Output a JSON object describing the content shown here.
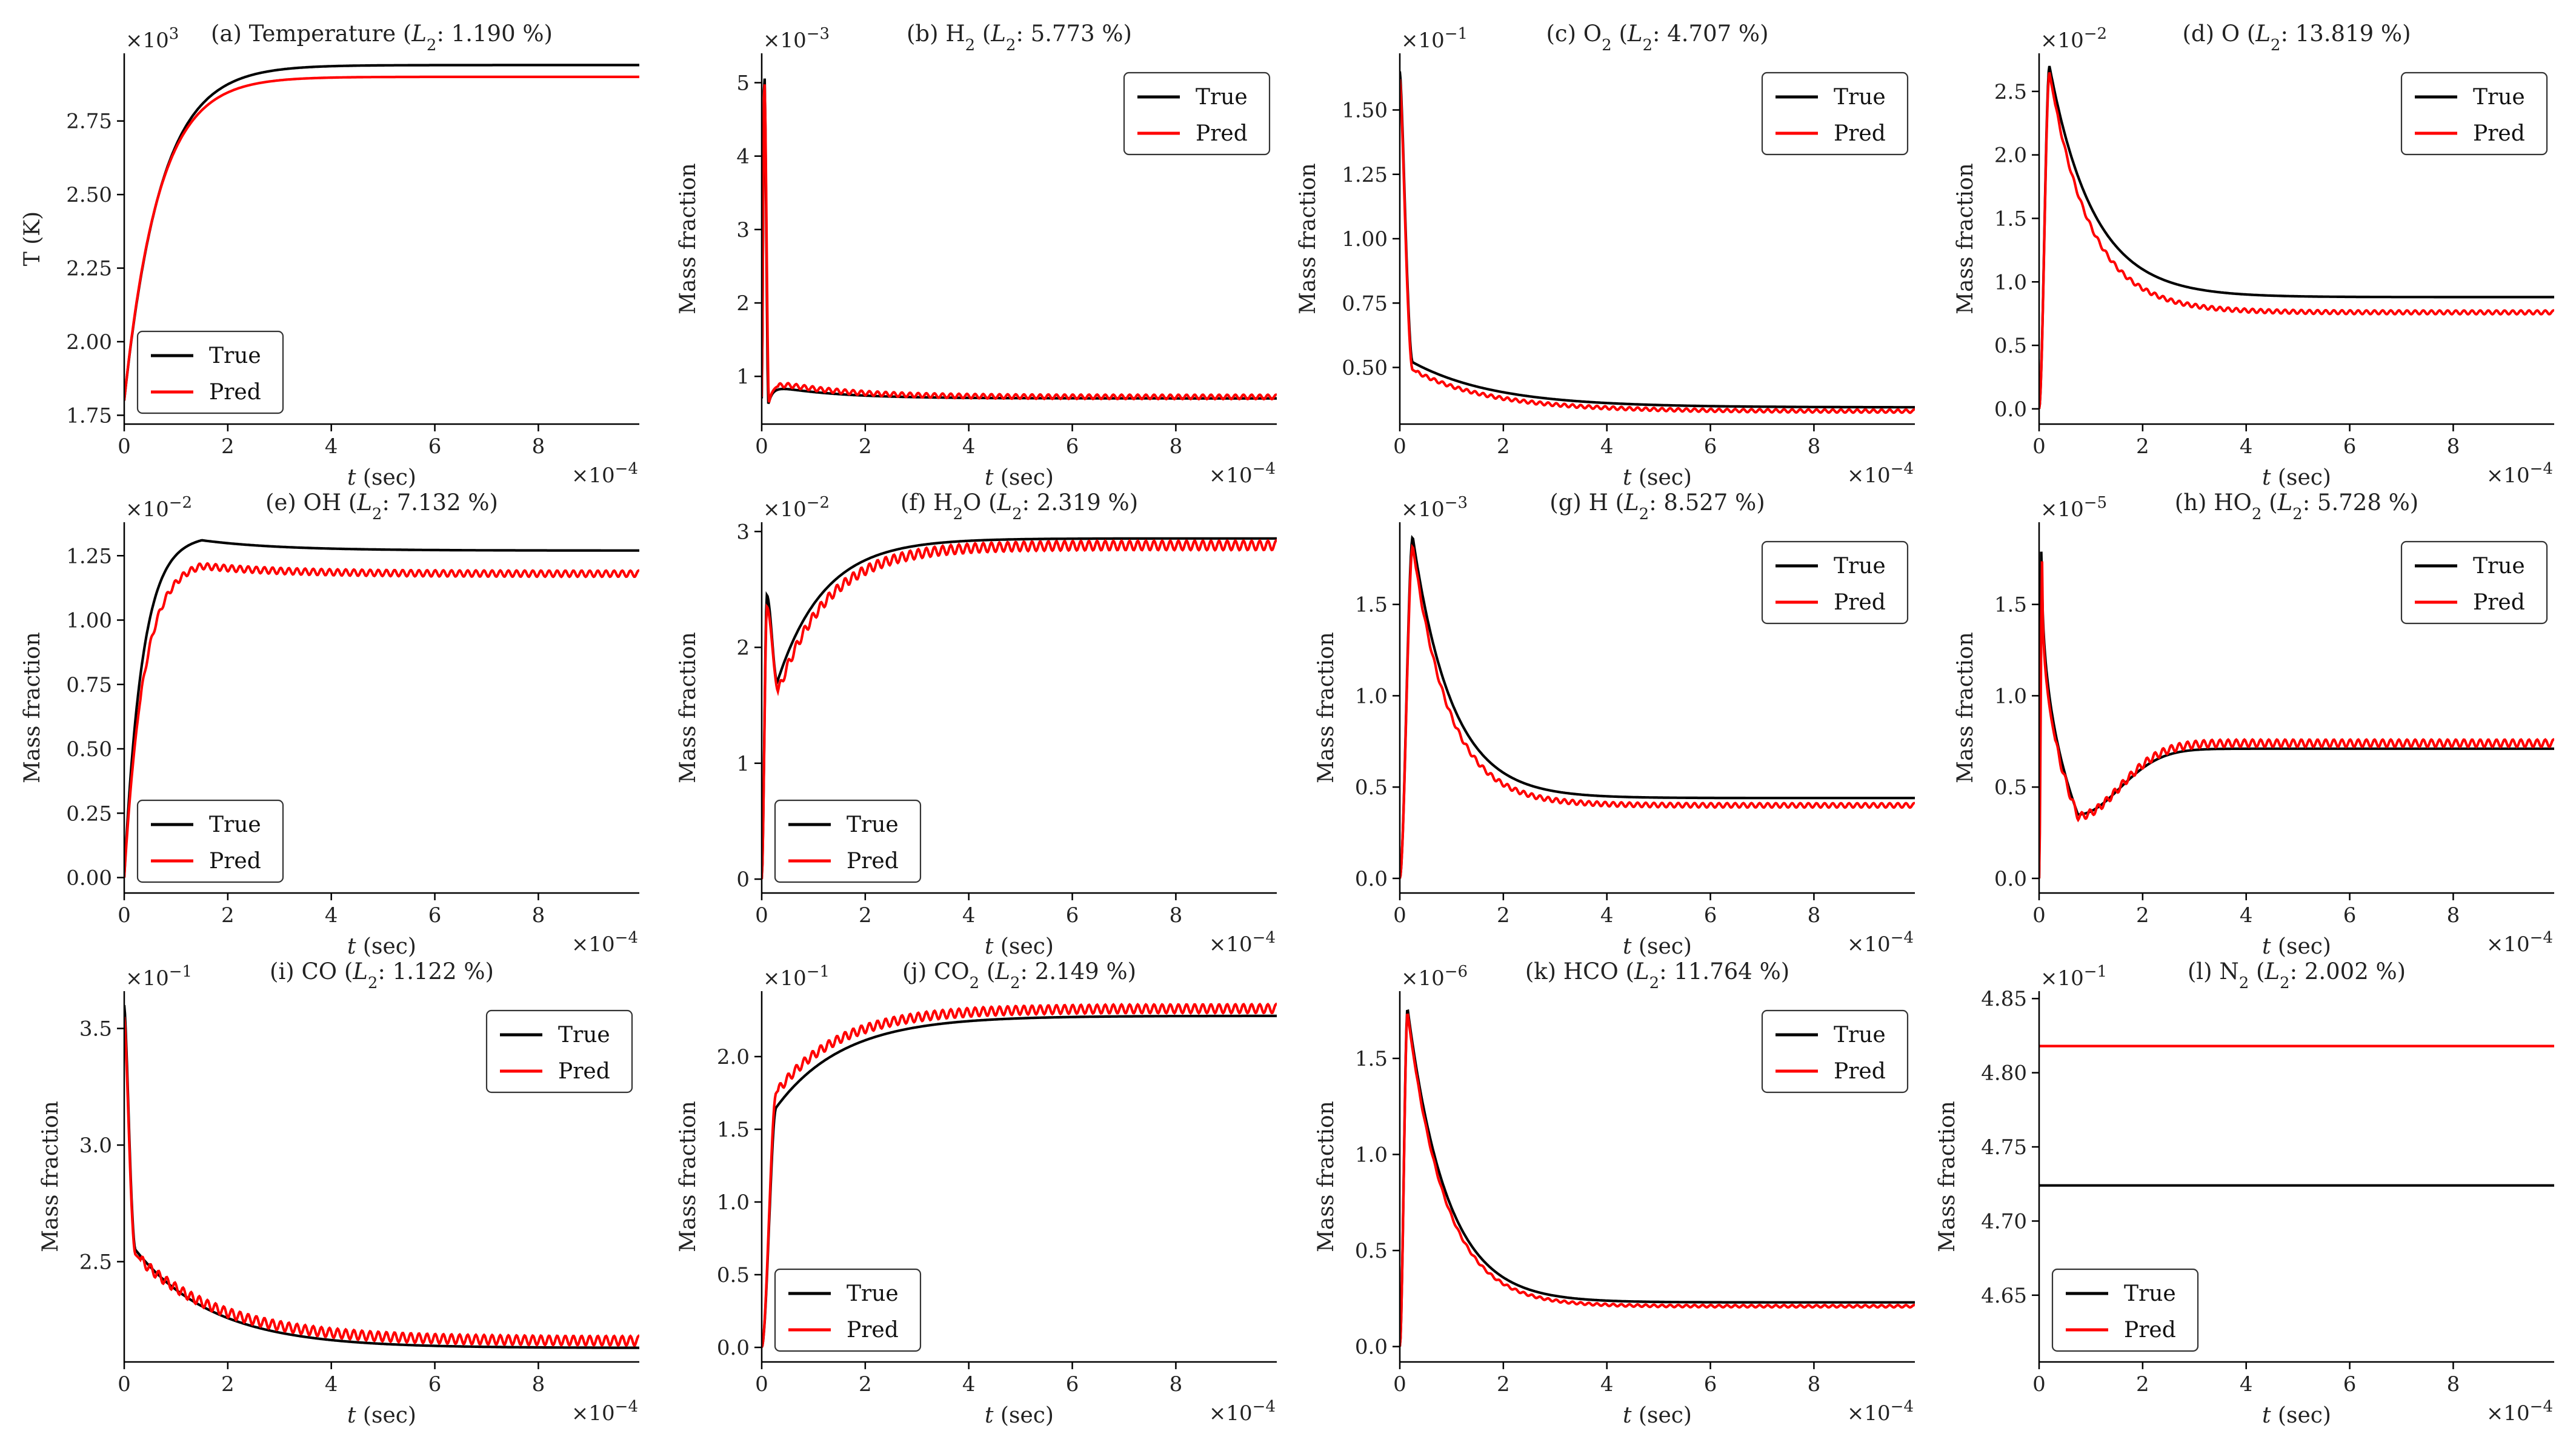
{
  "colors": {
    "true": "#000000",
    "pred": "#ff0000"
  },
  "legend_labels": {
    "true": "True",
    "pred": "Pred"
  },
  "x_label": {
    "italic": "t",
    "rest": "(sec)"
  },
  "chart_data": [
    {
      "id": "a",
      "type": "line",
      "title": {
        "prefix": "(a) Temperature (",
        "l2_italic": "L",
        "l2_sub": "2",
        "suffix": ": 1.190 %)"
      },
      "ylabel": "T (K)",
      "y_multiplier": "×10",
      "y_exponent": "3",
      "x_multiplier": "×10",
      "x_exponent": "−4",
      "xlim": [
        0,
        9.95
      ],
      "xticks": [
        "0",
        "2",
        "4",
        "6",
        "8"
      ],
      "ylim": [
        1.72,
        2.98
      ],
      "yticks": [
        "1.75",
        "2.00",
        "2.25",
        "2.50",
        "2.75"
      ],
      "legend_position": "lower-left",
      "series": [
        {
          "name": "True",
          "kind": "grow",
          "y0": 1.8,
          "y1": 2.94,
          "tau": 0.7
        },
        {
          "name": "Pred",
          "kind": "grow",
          "y0": 1.8,
          "y1": 2.9,
          "tau": 0.66
        }
      ]
    },
    {
      "id": "b",
      "type": "line",
      "title": {
        "prefix": "(b) H",
        "sub": "2",
        "mid": " (",
        "l2_italic": "L",
        "l2_sub": "2",
        "suffix": ": 5.773 %)"
      },
      "ylabel": "Mass fraction",
      "y_multiplier": "×10",
      "y_exponent": "−3",
      "x_multiplier": "×10",
      "x_exponent": "−4",
      "xlim": [
        0,
        9.95
      ],
      "xticks": [
        "0",
        "2",
        "4",
        "6",
        "8"
      ],
      "ylim": [
        0.35,
        5.4
      ],
      "yticks": [
        "1",
        "2",
        "3",
        "4",
        "5"
      ],
      "legend_position": "upper-right",
      "series": [
        {
          "name": "True",
          "kind": "spike",
          "base": 0.7,
          "peak": 5.15,
          "tpeak": 0.05,
          "tdrop": 0.13,
          "bump": 0.18,
          "tau": 1.2
        },
        {
          "name": "Pred",
          "kind": "spike",
          "base": 0.72,
          "peak": 5.05,
          "tpeak": 0.05,
          "tdrop": 0.14,
          "bump": 0.22,
          "tau": 1.3,
          "wiggle": 0.03
        }
      ]
    },
    {
      "id": "c",
      "type": "line",
      "title": {
        "prefix": "(c) O",
        "sub": "2",
        "mid": " (",
        "l2_italic": "L",
        "l2_sub": "2",
        "suffix": ": 4.707 %)"
      },
      "ylabel": "Mass fraction",
      "y_multiplier": "×10",
      "y_exponent": "−1",
      "x_multiplier": "×10",
      "x_exponent": "−4",
      "xlim": [
        0,
        9.95
      ],
      "xticks": [
        "0",
        "2",
        "4",
        "6",
        "8"
      ],
      "ylim": [
        0.28,
        1.72
      ],
      "yticks": [
        "0.50",
        "0.75",
        "1.00",
        "1.25",
        "1.50"
      ],
      "legend_position": "upper-right",
      "series": [
        {
          "name": "True",
          "kind": "decay",
          "start": 1.65,
          "mid": 0.52,
          "tmid": 0.25,
          "end": 0.345,
          "tau": 1.6
        },
        {
          "name": "Pred",
          "kind": "decay",
          "start": 1.62,
          "mid": 0.49,
          "tmid": 0.25,
          "end": 0.33,
          "tau": 1.5,
          "wiggle": 0.006
        }
      ]
    },
    {
      "id": "d",
      "type": "line",
      "title": {
        "prefix": "(d) O (",
        "l2_italic": "L",
        "l2_sub": "2",
        "suffix": ": 13.819 %)"
      },
      "ylabel": "Mass fraction",
      "y_multiplier": "×10",
      "y_exponent": "−2",
      "x_multiplier": "×10",
      "x_exponent": "−4",
      "xlim": [
        0,
        9.95
      ],
      "xticks": [
        "0",
        "2",
        "4",
        "6",
        "8"
      ],
      "ylim": [
        -0.12,
        2.8
      ],
      "yticks": [
        "0.0",
        "0.5",
        "1.0",
        "1.5",
        "2.0",
        "2.5"
      ],
      "legend_position": "upper-right",
      "series": [
        {
          "name": "True",
          "kind": "peak",
          "peak": 2.7,
          "tpeak": 0.2,
          "end": 0.88,
          "tau": 0.85
        },
        {
          "name": "Pred",
          "kind": "peak",
          "peak": 2.65,
          "tpeak": 0.2,
          "end": 0.76,
          "tau": 0.78,
          "wiggle": 0.015
        }
      ]
    },
    {
      "id": "e",
      "type": "line",
      "title": {
        "prefix": "(e) OH (",
        "l2_italic": "L",
        "l2_sub": "2",
        "suffix": ": 7.132 %)"
      },
      "ylabel": "Mass fraction",
      "y_multiplier": "×10",
      "y_exponent": "−2",
      "x_multiplier": "×10",
      "x_exponent": "−4",
      "xlim": [
        0,
        9.95
      ],
      "xticks": [
        "0",
        "2",
        "4",
        "6",
        "8"
      ],
      "ylim": [
        -0.06,
        1.38
      ],
      "yticks": [
        "0.00",
        "0.25",
        "0.50",
        "0.75",
        "1.00",
        "1.25"
      ],
      "legend_position": "lower-left",
      "series": [
        {
          "name": "True",
          "kind": "overshoot",
          "peak": 1.31,
          "tpeak": 1.5,
          "end": 1.27,
          "rise": 0.35
        },
        {
          "name": "Pred",
          "kind": "overshoot",
          "peak": 1.21,
          "tpeak": 1.5,
          "end": 1.18,
          "rise": 0.38,
          "wiggle": 0.012
        }
      ]
    },
    {
      "id": "f",
      "type": "line",
      "title": {
        "prefix": "(f) H",
        "sub": "2",
        "mid": "O (",
        "l2_italic": "L",
        "l2_sub": "2",
        "suffix": ": 2.319 %)"
      },
      "ylabel": "Mass fraction",
      "y_multiplier": "×10",
      "y_exponent": "−2",
      "x_multiplier": "×10",
      "x_exponent": "−4",
      "xlim": [
        0,
        9.95
      ],
      "xticks": [
        "0",
        "2",
        "4",
        "6",
        "8"
      ],
      "ylim": [
        -0.12,
        3.08
      ],
      "yticks": [
        "0",
        "1",
        "2",
        "3"
      ],
      "legend_position": "lower-left",
      "series": [
        {
          "name": "True",
          "kind": "dipgrow",
          "spike": 2.45,
          "tspike": 0.1,
          "dip": 1.7,
          "tdip": 0.3,
          "end": 2.94,
          "tau": 0.9
        },
        {
          "name": "Pred",
          "kind": "dipgrow",
          "spike": 2.35,
          "tspike": 0.1,
          "dip": 1.62,
          "tdip": 0.32,
          "end": 2.88,
          "tau": 0.95,
          "wiggle": 0.04
        }
      ]
    },
    {
      "id": "g",
      "type": "line",
      "title": {
        "prefix": "(g) H (",
        "l2_italic": "L",
        "l2_sub": "2",
        "suffix": ": 8.527 %)"
      },
      "ylabel": "Mass fraction",
      "y_multiplier": "×10",
      "y_exponent": "−3",
      "x_multiplier": "×10",
      "x_exponent": "−4",
      "xlim": [
        0,
        9.95
      ],
      "xticks": [
        "0",
        "2",
        "4",
        "6",
        "8"
      ],
      "ylim": [
        -0.08,
        1.95
      ],
      "yticks": [
        "0.0",
        "0.5",
        "1.0",
        "1.5"
      ],
      "legend_position": "upper-right",
      "series": [
        {
          "name": "True",
          "kind": "peak",
          "peak": 1.87,
          "tpeak": 0.25,
          "end": 0.44,
          "tau": 0.75
        },
        {
          "name": "Pred",
          "kind": "peak",
          "peak": 1.82,
          "tpeak": 0.25,
          "end": 0.4,
          "tau": 0.7,
          "wiggle": 0.012
        }
      ]
    },
    {
      "id": "h",
      "type": "line",
      "title": {
        "prefix": "(h) HO",
        "sub": "2",
        "mid": " (",
        "l2_italic": "L",
        "l2_sub": "2",
        "suffix": ": 5.728 %)"
      },
      "ylabel": "Mass fraction",
      "y_multiplier": "×10",
      "y_exponent": "−5",
      "x_multiplier": "×10",
      "x_exponent": "−4",
      "xlim": [
        0,
        9.95
      ],
      "xticks": [
        "0",
        "2",
        "4",
        "6",
        "8"
      ],
      "ylim": [
        -0.08,
        1.95
      ],
      "yticks": [
        "0.0",
        "0.5",
        "1.0",
        "1.5"
      ],
      "legend_position": "upper-right",
      "series": [
        {
          "name": "True",
          "kind": "spikedip",
          "peak": 1.9,
          "tpeak": 0.05,
          "trough": 0.35,
          "ttrough": 0.75,
          "end": 0.71
        },
        {
          "name": "Pred",
          "kind": "spikedip",
          "peak": 1.75,
          "tpeak": 0.06,
          "trough": 0.34,
          "ttrough": 0.75,
          "end": 0.74,
          "wiggle": 0.02
        }
      ]
    },
    {
      "id": "i",
      "type": "line",
      "title": {
        "prefix": "(i) CO (",
        "l2_italic": "L",
        "l2_sub": "2",
        "suffix": ": 1.122 %)"
      },
      "ylabel": "Mass fraction",
      "y_multiplier": "×10",
      "y_exponent": "−1",
      "x_multiplier": "×10",
      "x_exponent": "−4",
      "xlim": [
        0,
        9.95
      ],
      "xticks": [
        "0",
        "2",
        "4",
        "6",
        "8"
      ],
      "ylim": [
        2.07,
        3.66
      ],
      "yticks": [
        "2.5",
        "3.0",
        "3.5"
      ],
      "legend_position": "upper-right",
      "series": [
        {
          "name": "True",
          "kind": "decay",
          "start": 3.6,
          "mid": 2.55,
          "tmid": 0.22,
          "end": 2.13,
          "tau": 1.5
        },
        {
          "name": "Pred",
          "kind": "decay",
          "start": 3.55,
          "mid": 2.53,
          "tmid": 0.22,
          "end": 2.16,
          "tau": 1.6,
          "wiggle": 0.02
        }
      ]
    },
    {
      "id": "j",
      "type": "line",
      "title": {
        "prefix": "(j) CO",
        "sub": "2",
        "mid": " (",
        "l2_italic": "L",
        "l2_sub": "2",
        "suffix": ": 2.149 %)"
      },
      "ylabel": "Mass fraction",
      "y_multiplier": "×10",
      "y_exponent": "−1",
      "x_multiplier": "×10",
      "x_exponent": "−4",
      "xlim": [
        0,
        9.95
      ],
      "xticks": [
        "0",
        "2",
        "4",
        "6",
        "8"
      ],
      "ylim": [
        -0.1,
        2.45
      ],
      "yticks": [
        "0.0",
        "0.5",
        "1.0",
        "1.5",
        "2.0"
      ],
      "legend_position": "lower-left",
      "series": [
        {
          "name": "True",
          "kind": "jumpgrow",
          "jump": 1.65,
          "tjump": 0.28,
          "end": 2.28,
          "tau": 1.3
        },
        {
          "name": "Pred",
          "kind": "jumpgrow",
          "jump": 1.75,
          "tjump": 0.28,
          "end": 2.33,
          "tau": 1.2,
          "wiggle": 0.03
        }
      ]
    },
    {
      "id": "k",
      "type": "line",
      "title": {
        "prefix": "(k) HCO (",
        "l2_italic": "L",
        "l2_sub": "2",
        "suffix": ": 11.764 %)"
      },
      "ylabel": "Mass fraction",
      "y_multiplier": "×10",
      "y_exponent": "−6",
      "x_multiplier": "×10",
      "x_exponent": "−4",
      "xlim": [
        0,
        9.95
      ],
      "xticks": [
        "0",
        "2",
        "4",
        "6",
        "8"
      ],
      "ylim": [
        -0.08,
        1.85
      ],
      "yticks": [
        "0.0",
        "0.5",
        "1.0",
        "1.5"
      ],
      "legend_position": "upper-right",
      "series": [
        {
          "name": "True",
          "kind": "peak",
          "peak": 1.76,
          "tpeak": 0.15,
          "end": 0.23,
          "tau": 0.75
        },
        {
          "name": "Pred",
          "kind": "peak",
          "peak": 1.74,
          "tpeak": 0.15,
          "end": 0.21,
          "tau": 0.72,
          "wiggle": 0.006
        }
      ]
    },
    {
      "id": "l",
      "type": "line",
      "title": {
        "prefix": "(l) N",
        "sub": "2",
        "mid": " (",
        "l2_italic": "L",
        "l2_sub": "2",
        "suffix": ": 2.002 %)"
      },
      "ylabel": "Mass fraction",
      "y_multiplier": "×10",
      "y_exponent": "−1",
      "x_multiplier": "×10",
      "x_exponent": "−4",
      "xlim": [
        0,
        9.95
      ],
      "xticks": [
        "0",
        "2",
        "4",
        "6",
        "8"
      ],
      "ylim": [
        4.605,
        4.855
      ],
      "yticks": [
        "4.65",
        "4.70",
        "4.75",
        "4.80",
        "4.85"
      ],
      "legend_position": "lower-left",
      "series": [
        {
          "name": "True",
          "kind": "flat",
          "value": 4.724
        },
        {
          "name": "Pred",
          "kind": "flat",
          "value": 4.818
        }
      ]
    }
  ]
}
